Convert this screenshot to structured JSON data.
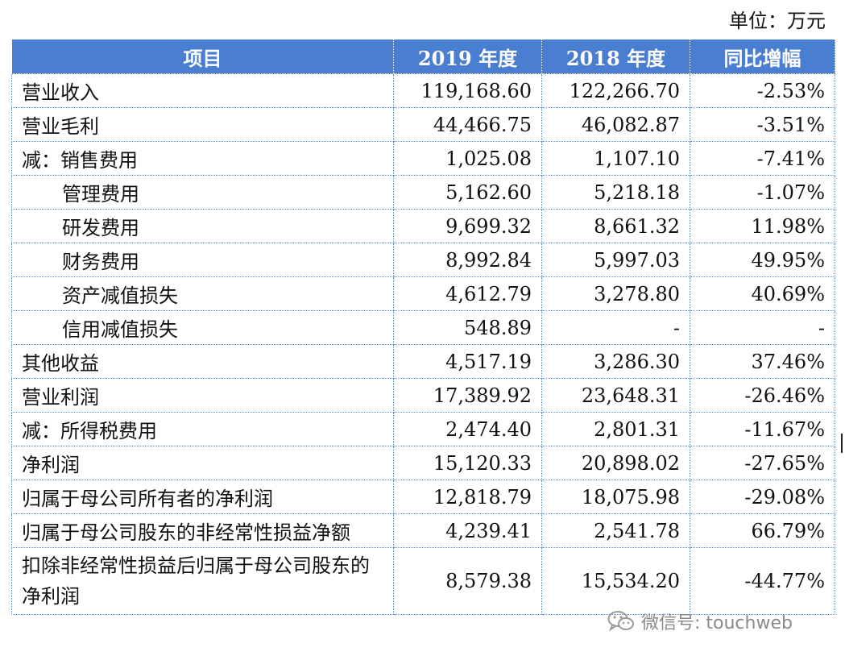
{
  "unit": "单位：万元",
  "headers": [
    "项目",
    "2019 年度",
    "2018 年度",
    "同比增幅"
  ],
  "rows": [
    {
      "label": "营业收入",
      "y2019": "119,168.60",
      "y2018": "122,266.70",
      "change": "-2.53%"
    },
    {
      "label": "营业毛利",
      "y2019": "44,466.75",
      "y2018": "46,082.87",
      "change": "-3.51%"
    },
    {
      "label": "减：销售费用",
      "y2019": "1,025.08",
      "y2018": "1,107.10",
      "change": "-7.41%"
    },
    {
      "label": "管理费用",
      "y2019": "5,162.60",
      "y2018": "5,218.18",
      "change": "-1.07%"
    },
    {
      "label": "研发费用",
      "y2019": "9,699.32",
      "y2018": "8,661.32",
      "change": "11.98%"
    },
    {
      "label": "财务费用",
      "y2019": "8,992.84",
      "y2018": "5,997.03",
      "change": "49.95%"
    },
    {
      "label": "资产减值损失",
      "y2019": "4,612.79",
      "y2018": "3,278.80",
      "change": "40.69%"
    },
    {
      "label": "信用减值损失",
      "y2019": "548.89",
      "y2018": "-",
      "change": "-"
    },
    {
      "label": "其他收益",
      "y2019": "4,517.19",
      "y2018": "3,286.30",
      "change": "37.46%"
    },
    {
      "label": "营业利润",
      "y2019": "17,389.92",
      "y2018": "23,648.31",
      "change": "-26.46%"
    },
    {
      "label": "减：所得税费用",
      "y2019": "2,474.40",
      "y2018": "2,801.31",
      "change": "-11.67%"
    },
    {
      "label": "净利润",
      "y2019": "15,120.33",
      "y2018": "20,898.02",
      "change": "-27.65%"
    },
    {
      "label": "归属于母公司所有者的净利润",
      "y2019": "12,818.79",
      "y2018": "18,075.98",
      "change": "-29.08%"
    },
    {
      "label": "归属于母公司股东的非经常性损益净额",
      "y2019": "4,239.41",
      "y2018": "2,541.78",
      "change": "66.79%"
    },
    {
      "label": "扣除非经常性损益后归属于母公司股东的净利润",
      "y2019": "8,579.38",
      "y2018": "15,534.20",
      "change": "-44.77%"
    }
  ],
  "watermark": {
    "icon": "wechat-icon",
    "text": "微信号: touchweb"
  }
}
